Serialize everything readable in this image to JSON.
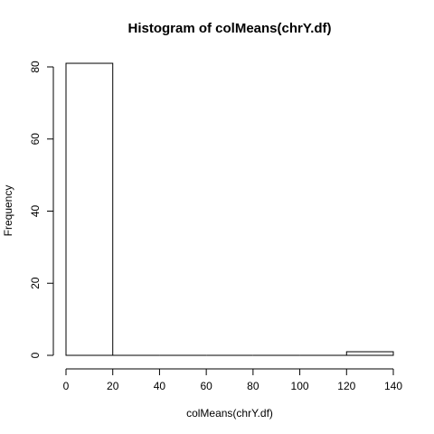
{
  "chart_data": {
    "type": "bar",
    "title": "Histogram of colMeans(chrY.df)",
    "xlabel": "colMeans(chrY.df)",
    "ylabel": "Frequency",
    "bins": [
      {
        "start": 0,
        "end": 20,
        "count": 81
      },
      {
        "start": 20,
        "end": 40,
        "count": 0
      },
      {
        "start": 40,
        "end": 60,
        "count": 0
      },
      {
        "start": 60,
        "end": 80,
        "count": 0
      },
      {
        "start": 80,
        "end": 100,
        "count": 0
      },
      {
        "start": 100,
        "end": 120,
        "count": 0
      },
      {
        "start": 120,
        "end": 140,
        "count": 1
      }
    ],
    "xlim": [
      0,
      140
    ],
    "ylim": [
      0,
      80
    ],
    "xticks": [
      0,
      20,
      40,
      60,
      80,
      100,
      120,
      140
    ],
    "yticks": [
      0,
      20,
      40,
      60,
      80
    ],
    "xtick_labels": [
      "0",
      "20",
      "40",
      "60",
      "80",
      "100",
      "120",
      "140"
    ],
    "ytick_labels": [
      "0",
      "20",
      "40",
      "60",
      "80"
    ],
    "grid": false,
    "legend": "none"
  }
}
